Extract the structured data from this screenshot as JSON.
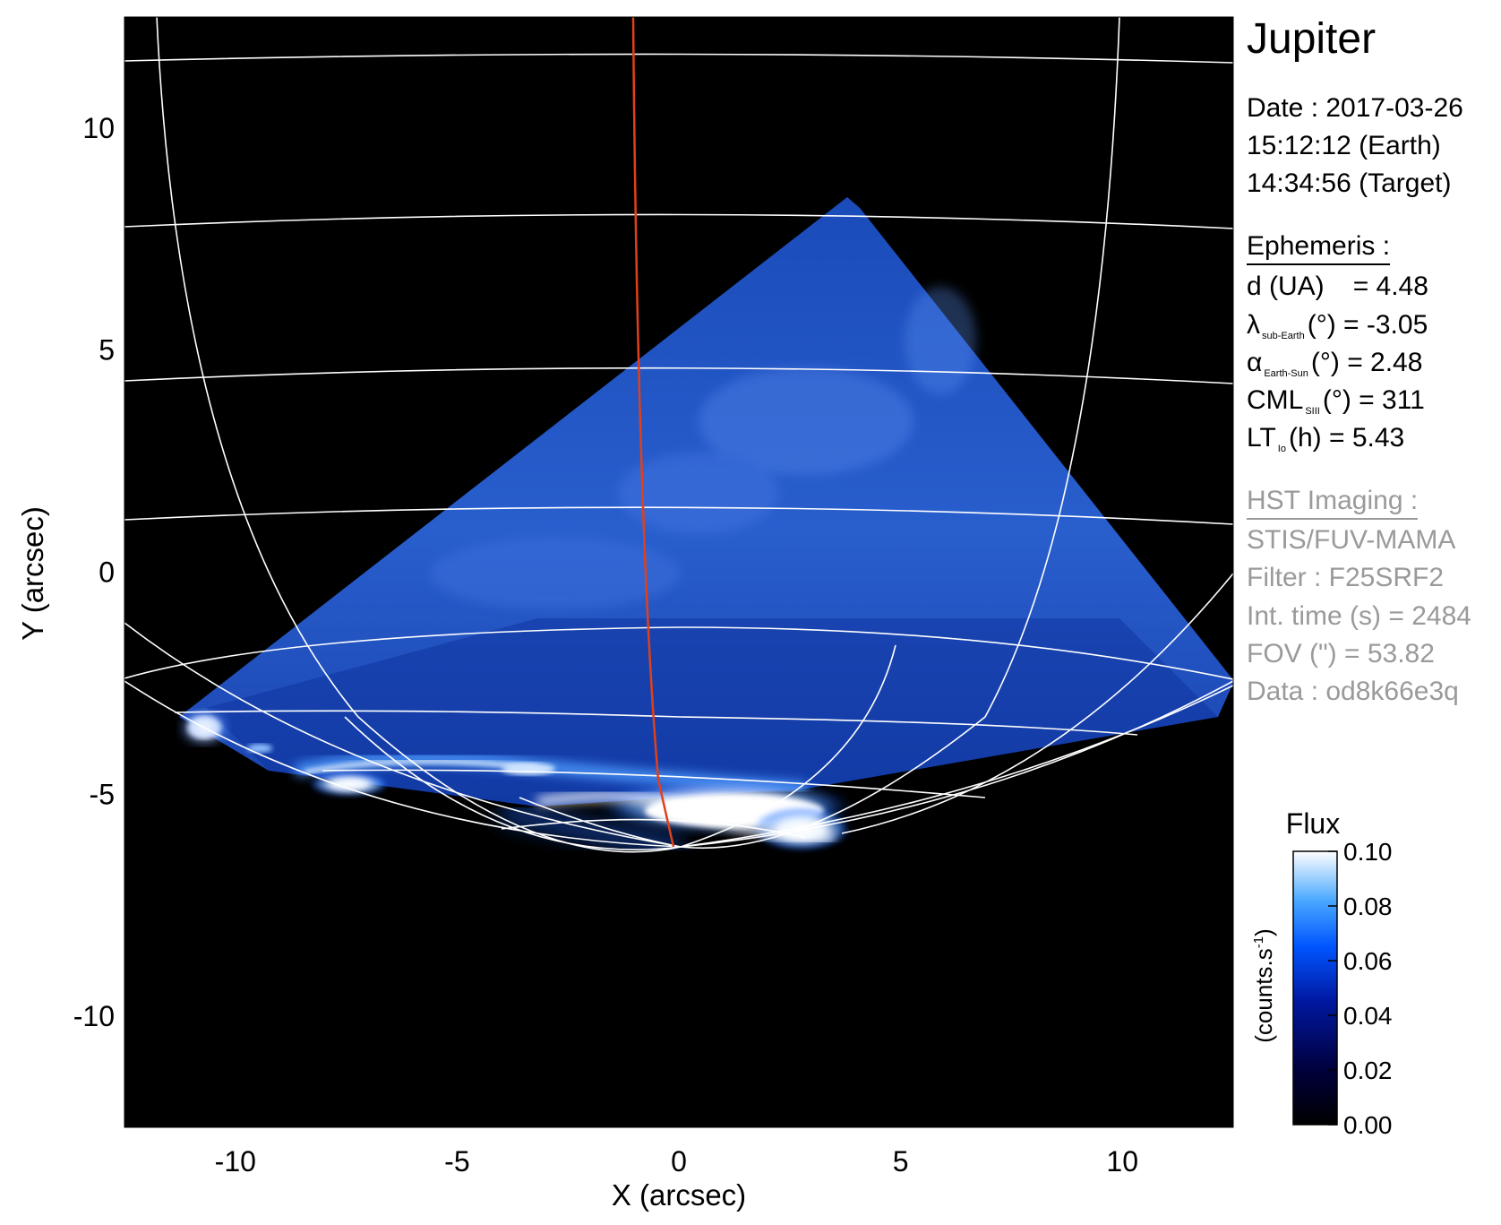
{
  "chart_data": {
    "type": "heatmap",
    "title": "Jupiter",
    "xlabel": "X (arcsec)",
    "ylabel": "Y (arcsec)",
    "xlim": [
      -12.5,
      12.5
    ],
    "ylim": [
      -12.5,
      12.5
    ],
    "x_ticks": [
      -10,
      -5,
      0,
      5,
      10
    ],
    "y_ticks": [
      -10,
      -5,
      0,
      5,
      10
    ],
    "colorbar": {
      "title": "Flux",
      "unit_label": "(counts.s",
      "unit_sup": "-1",
      "unit_close": ")",
      "range": [
        0.0,
        0.1
      ],
      "ticks": [
        "0.00",
        "0.02",
        "0.04",
        "0.06",
        "0.08",
        "0.10"
      ],
      "colormap": [
        "#000000",
        "#00003c",
        "#0018a0",
        "#0055ff",
        "#4aa8ff",
        "#ffffff"
      ]
    },
    "central_meridian_color": "#e0401a",
    "grid_color": "#ffffff",
    "background_color": "#000000"
  },
  "info": {
    "title": "Jupiter",
    "date": "Date : 2017-03-26",
    "earth_time": "15:12:12 (Earth)",
    "target_time": "14:34:56 (Target)",
    "ephemeris_header": "Ephemeris :",
    "d_label": "d (UA)",
    "d_value": "= 4.48",
    "lambda_symbol": "λ",
    "lambda_sub": "sub-Earth",
    "lambda_unit": "(°) = -3.05",
    "alpha_symbol": "α",
    "alpha_sub": "Earth-Sun",
    "alpha_unit": "(°) = 2.48",
    "cml_symbol": "CML",
    "cml_sub": "SIII",
    "cml_unit": "(°) = 311",
    "lt_symbol": "LT",
    "lt_sub": "Io",
    "lt_unit": "(h) = 5.43",
    "hst_header": "HST Imaging :",
    "instrument": "STIS/FUV-MAMA",
    "filter": "Filter : F25SRF2",
    "int_time": "Int. time (s) = 2484",
    "fov": "FOV (\") = 53.82",
    "dataset": "Data : od8k66e3q"
  }
}
